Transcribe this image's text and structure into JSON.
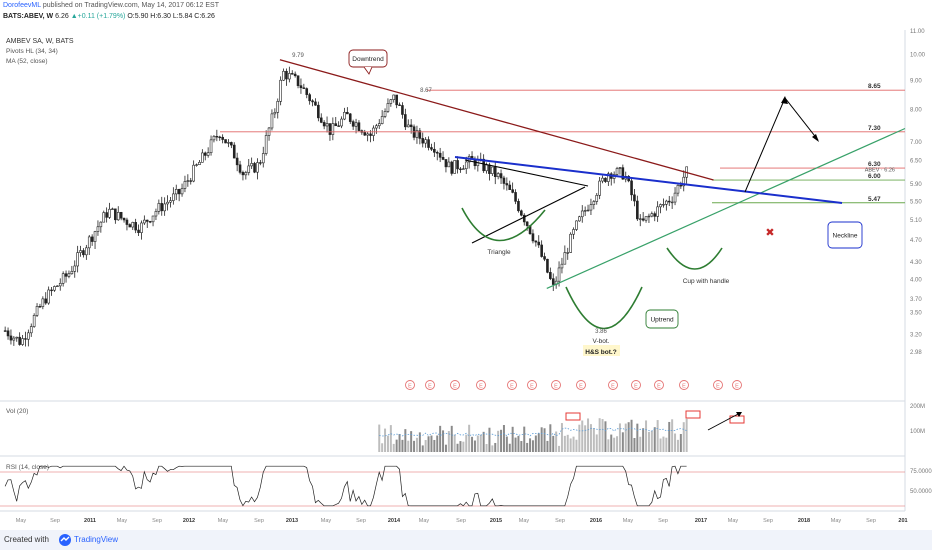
{
  "header": {
    "author": "DorofeevML",
    "published": "published on TradingView.com, May 14, 2017 06:12 EST",
    "symbol": "BATS:ABEV, W",
    "last": "6.26",
    "change": "+0.11 (+1.79%)",
    "ohlc": "O:5.90 H:6.30 L:5.84 C:6.26"
  },
  "chart_data": {
    "type": "candlestick",
    "title": "AMBEV SA, W, BATS",
    "indicators": [
      "Pivots HL (34, 34)",
      "MA (52, close)"
    ],
    "price_axis_ticks": [
      11.0,
      10.0,
      9.0,
      8.0,
      7.0,
      6.5,
      5.9,
      5.5,
      5.1,
      4.7,
      4.3,
      4.0,
      3.7,
      3.5,
      3.2,
      2.98
    ],
    "x_axis_ticks": [
      "May",
      "Sep",
      "2011",
      "May",
      "Sep",
      "2012",
      "May",
      "Sep",
      "2013",
      "May",
      "Sep",
      "2014",
      "May",
      "Sep",
      "2015",
      "May",
      "Sep",
      "2016",
      "May",
      "Sep",
      "2017",
      "May",
      "Sep",
      "2018",
      "May",
      "Sep",
      "201"
    ],
    "pivot_labels": [
      "9.79",
      "8.67",
      "3.86"
    ],
    "horizontal_levels": [
      8.65,
      7.3,
      6.3,
      6.0,
      5.47
    ],
    "last_price_label": "ABEV · 6.26",
    "annotations": [
      "Downtrend",
      "Triangle",
      "Cup with handle",
      "Uptrend",
      "V-bot.",
      "H&S bot.?",
      "Neckline"
    ],
    "close_series": [
      {
        "t": "2010-03",
        "c": 3.25
      },
      {
        "t": "2010-05",
        "c": 3.1
      },
      {
        "t": "2010-08",
        "c": 3.7
      },
      {
        "t": "2010-11",
        "c": 4.1
      },
      {
        "t": "2011-02",
        "c": 4.8
      },
      {
        "t": "2011-04",
        "c": 5.3
      },
      {
        "t": "2011-06",
        "c": 5.1
      },
      {
        "t": "2011-08",
        "c": 4.95
      },
      {
        "t": "2011-10",
        "c": 5.3
      },
      {
        "t": "2012-01",
        "c": 5.7
      },
      {
        "t": "2012-04",
        "c": 6.6
      },
      {
        "t": "2012-06",
        "c": 7.3
      },
      {
        "t": "2012-08",
        "c": 6.6
      },
      {
        "t": "2012-09",
        "c": 6.15
      },
      {
        "t": "2012-11",
        "c": 6.4
      },
      {
        "t": "2013-01",
        "c": 8.0
      },
      {
        "t": "2013-02",
        "c": 9.3
      },
      {
        "t": "2013-04",
        "c": 8.9
      },
      {
        "t": "2013-06",
        "c": 8.1
      },
      {
        "t": "2013-08",
        "c": 7.3
      },
      {
        "t": "2013-10",
        "c": 7.8
      },
      {
        "t": "2014-01",
        "c": 7.2
      },
      {
        "t": "2014-04",
        "c": 8.4
      },
      {
        "t": "2014-06",
        "c": 7.3
      },
      {
        "t": "2014-09",
        "c": 6.9
      },
      {
        "t": "2014-11",
        "c": 6.3
      },
      {
        "t": "2015-02",
        "c": 6.5
      },
      {
        "t": "2015-05",
        "c": 6.1
      },
      {
        "t": "2015-07",
        "c": 5.6
      },
      {
        "t": "2015-10",
        "c": 4.6
      },
      {
        "t": "2015-12",
        "c": 3.86
      },
      {
        "t": "2016-03",
        "c": 5.0
      },
      {
        "t": "2016-05",
        "c": 5.6
      },
      {
        "t": "2016-07",
        "c": 6.2
      },
      {
        "t": "2016-09",
        "c": 6.15
      },
      {
        "t": "2016-11",
        "c": 5.0
      },
      {
        "t": "2017-01",
        "c": 5.3
      },
      {
        "t": "2017-03",
        "c": 5.6
      },
      {
        "t": "2017-05",
        "c": 6.26
      }
    ],
    "volume_pane": {
      "label": "Vol (20)",
      "ticks": [
        "200M",
        "100M"
      ]
    },
    "rsi_pane": {
      "label": "RSI (14, close)",
      "ticks": [
        "75.0000",
        "50.0000"
      ]
    },
    "earnings_marker_count": 14
  },
  "footer": {
    "created": "Created with",
    "brand": "TradingView"
  }
}
